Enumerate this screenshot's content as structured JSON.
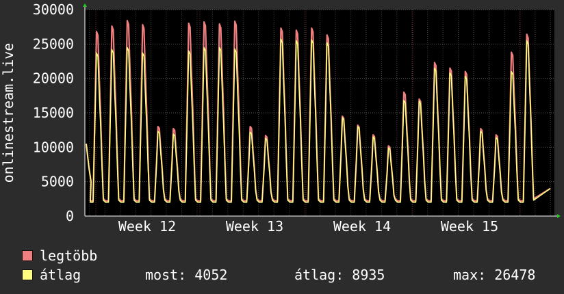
{
  "chart_data": {
    "type": "area",
    "ylabel": "onlinestream.live",
    "y_ticks": [
      0,
      5000,
      10000,
      15000,
      20000,
      25000,
      30000
    ],
    "ylim": [
      0,
      30000
    ],
    "x_ticks": [
      "Week 12",
      "Week 13",
      "Week 14",
      "Week 15"
    ],
    "grid": true,
    "series": [
      {
        "name": "legtöbb",
        "color": "#f08080",
        "daily_peaks": [
          26800,
          27600,
          28400,
          27800,
          13000,
          12700,
          28000,
          28200,
          27900,
          28300,
          13000,
          11700,
          27300,
          27000,
          27300,
          26300,
          14500,
          13200,
          11800,
          10200,
          18000,
          17000,
          22300,
          21500,
          21000,
          12700,
          11800,
          23800,
          26400
        ]
      },
      {
        "name": "átlag",
        "color": "#ffff80",
        "daily_peaks": [
          23700,
          24200,
          24500,
          23700,
          12300,
          11900,
          24000,
          24500,
          24500,
          24300,
          12200,
          11300,
          25700,
          25500,
          25600,
          25200,
          14300,
          13000,
          11500,
          9900,
          16800,
          16700,
          21500,
          20800,
          20300,
          12300,
          11400,
          21000,
          25500
        ]
      }
    ]
  },
  "legend": {
    "max_label": "legtöbb",
    "avg_label": "átlag",
    "max_color": "#f08080",
    "avg_color": "#ffff80"
  },
  "stats": {
    "now": "most: 4052",
    "avg": "átlag: 8935",
    "max": "max: 26478"
  }
}
